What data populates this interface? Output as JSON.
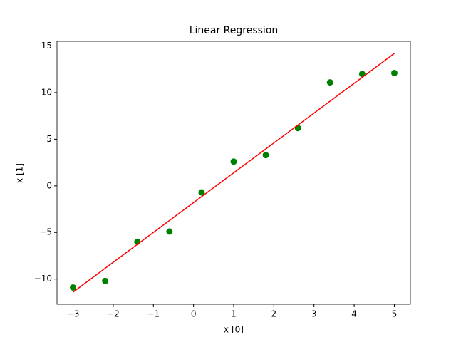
{
  "chart_data": {
    "type": "scatter",
    "title": "Linear Regression",
    "xlabel": "x [0]",
    "ylabel": "x [1]",
    "xlim": [
      -3.4,
      5.4
    ],
    "ylim": [
      -12.7,
      15.5
    ],
    "xticks": [
      {
        "value": -3,
        "label": "−3"
      },
      {
        "value": -2,
        "label": "−2"
      },
      {
        "value": -1,
        "label": "−1"
      },
      0,
      1,
      2,
      3,
      4,
      5
    ],
    "yticks": [
      {
        "value": -10,
        "label": "−10"
      },
      {
        "value": -5,
        "label": "−5"
      },
      0,
      5,
      10,
      15
    ],
    "series": [
      {
        "type": "scatter",
        "color": "#008000",
        "x": [
          -3,
          -2.2,
          -1.4,
          -0.6,
          0.2,
          1,
          1.8,
          2.6,
          3.4,
          4.2,
          5
        ],
        "values": [
          -10.9,
          -10.2,
          -6.0,
          -4.9,
          -0.7,
          2.6,
          3.3,
          6.2,
          11.1,
          12.0,
          12.1
        ]
      },
      {
        "type": "line",
        "color": "#ff0000",
        "x": [
          -3,
          5
        ],
        "values": [
          -11.4,
          14.2
        ]
      }
    ]
  }
}
